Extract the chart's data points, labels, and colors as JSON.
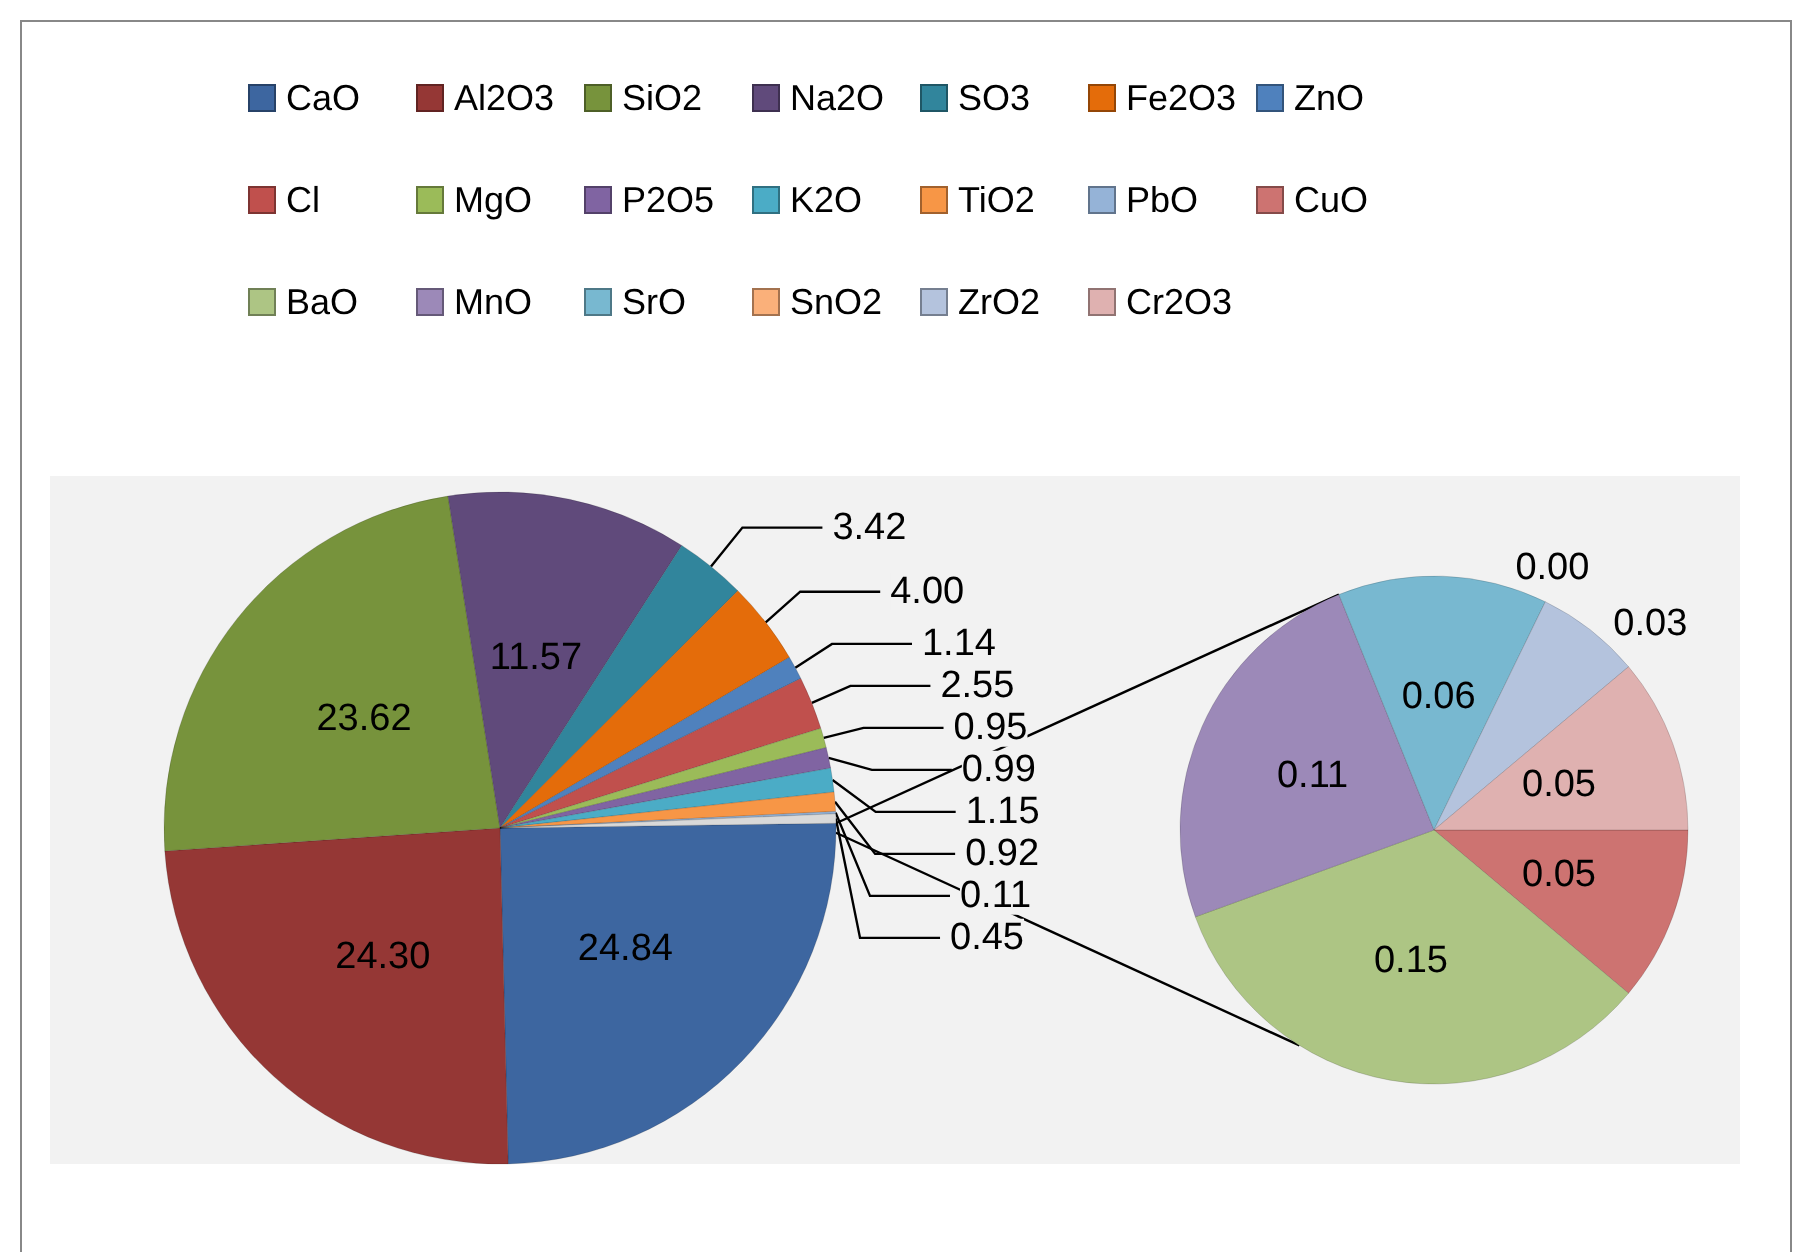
{
  "chart_data": [
    {
      "type": "pie",
      "legend": "top",
      "data_labels": true,
      "categories": [
        "CaO",
        "Al2O3",
        "SiO2",
        "Na2O",
        "SO3",
        "Fe2O3",
        "ZnO",
        "Cl",
        "MgO",
        "P2O5",
        "K2O",
        "TiO2",
        "PbO",
        null
      ],
      "values": [
        24.84,
        24.3,
        23.62,
        11.57,
        3.42,
        4.0,
        1.14,
        2.55,
        0.95,
        0.99,
        1.15,
        0.92,
        0.11,
        0.45
      ],
      "value_labels": [
        "24.84",
        "24.30",
        "23.62",
        "11.57",
        "3.42",
        "4.00",
        "1.14",
        "2.55",
        "0.95",
        "0.99",
        "1.15",
        "0.92",
        "0.11",
        "0.45"
      ],
      "colors": [
        "#3d66a0",
        "#953735",
        "#77933c",
        "#604a7b",
        "#31859c",
        "#e46c0a",
        "#4f81bd",
        "#c0504d",
        "#9bbb59",
        "#8064a2",
        "#4bacc6",
        "#f79646",
        "#95b3d7",
        "#d9d9d9"
      ]
    },
    {
      "type": "pie",
      "legend": "top",
      "data_labels": true,
      "categories": [
        "CuO",
        "BaO",
        "MnO",
        "SrO",
        "SnO2",
        "ZrO2",
        "Cr2O3"
      ],
      "values": [
        0.05,
        0.15,
        0.11,
        0.06,
        0.0,
        0.03,
        0.05
      ],
      "value_labels": [
        "0.05",
        "0.15",
        "0.11",
        "0.06",
        "0.00",
        "0.03",
        "0.05"
      ],
      "colors": [
        "#cd7371",
        "#adc584",
        "#9c89b8",
        "#78b8d0",
        "#fab07a",
        "#b4c3dd",
        "#dfb1b0"
      ]
    }
  ]
}
